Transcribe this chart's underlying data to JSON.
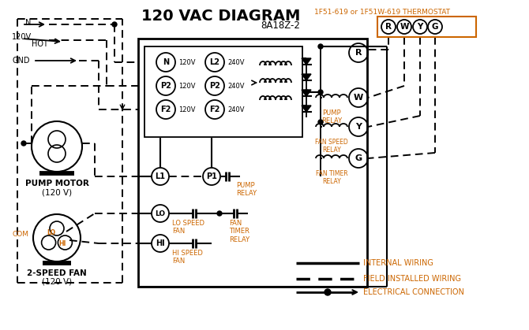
{
  "title": "120 VAC DIAGRAM",
  "title_fontsize": 14,
  "title_fontweight": "bold",
  "bg_color": "#ffffff",
  "text_color": "#000000",
  "orange_color": "#cc6600",
  "thermostat_label": "1F51-619 or 1F51W-619 THERMOSTAT",
  "control_box_label": "8A18Z-2",
  "terminal_labels": [
    "R",
    "W",
    "Y",
    "G"
  ],
  "relay_labels_right": [
    "R",
    "W",
    "Y",
    "G"
  ],
  "pump_motor_label": "PUMP MOTOR",
  "pump_motor_label2": "(120 V)",
  "fan_label": "2-SPEED FAN",
  "fan_label2": "(120 V)",
  "input_terminals_left": [
    "N",
    "P2",
    "F2"
  ],
  "input_voltages_left": [
    "120V",
    "120V",
    "120V"
  ],
  "input_terminals_right": [
    "L2",
    "P2",
    "F2"
  ],
  "input_voltages_right": [
    "240V",
    "240V",
    "240V"
  ],
  "relay_coil_labels": [
    "PUMP\nRELAY",
    "FAN SPEED\nRELAY",
    "FAN TIMER\nRELAY"
  ],
  "legend_solid": "INTERNAL WIRING",
  "legend_dashed": "FIELD INSTALLED WIRING",
  "legend_arrow": "ELECTRICAL CONNECTION",
  "n_label": "N",
  "v120_label": "120V",
  "hot_label": "HOT",
  "gnd_label": "GND",
  "com_label": "COM",
  "lo_label": "LO",
  "hi_label": "HI",
  "l1_label": "L1",
  "p1_label": "P1",
  "pump_relay_sw": "PUMP\nRELAY",
  "l0_label": "LO",
  "lo_speed": "LO SPEED\nFAN",
  "hi_speed_label": "HI",
  "hi_speed": "HI SPEED\nFAN",
  "fan_timer": "FAN\nTIMER\nRELAY"
}
